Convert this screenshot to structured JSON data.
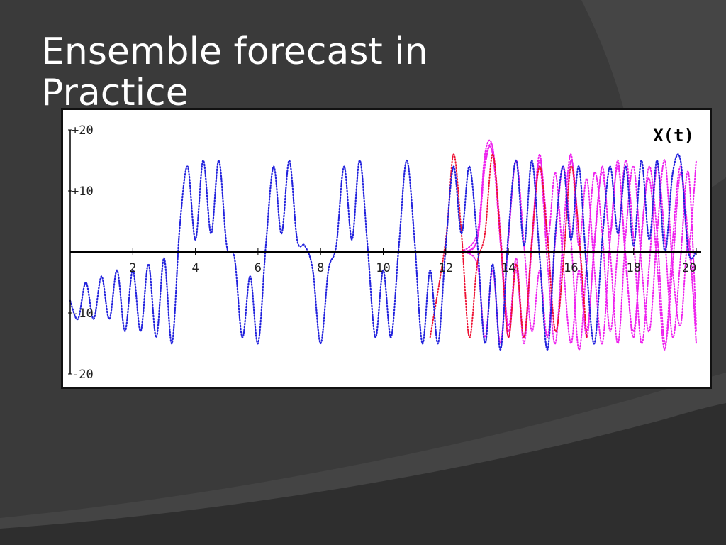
{
  "slide": {
    "title_line1": "Ensemble forecast in",
    "title_line2": "Practice"
  },
  "colors": {
    "background": "#3a3a3a",
    "title": "#ffffff",
    "control_run": "#2222dd",
    "ensemble_members": "#ee22ee",
    "perturbed_run": "#ee1133"
  },
  "chart_data": {
    "type": "line",
    "title": "X(t)",
    "xlabel": "",
    "ylabel": "",
    "xlim": [
      0,
      20
    ],
    "ylim": [
      -20,
      20
    ],
    "x_ticks": [
      2,
      4,
      6,
      8,
      10,
      12,
      14,
      16,
      18,
      20
    ],
    "x_tick_labels": [
      "2",
      "4",
      "6",
      "8",
      "10",
      "12",
      "14",
      "16",
      "18",
      "20"
    ],
    "y_ticks": [
      20,
      10,
      -10,
      -20
    ],
    "y_tick_labels": [
      "+20",
      "+10",
      "-10",
      "-20"
    ],
    "grid": false,
    "line_style": "dotted",
    "series": [
      {
        "role": "control",
        "color": "#2222dd",
        "x": [
          0.0,
          0.25,
          0.5,
          0.75,
          1.0,
          1.25,
          1.5,
          1.75,
          2.0,
          2.25,
          2.5,
          2.75,
          3.0,
          3.25,
          3.5,
          3.75,
          4.0,
          4.25,
          4.5,
          4.75,
          5.0,
          5.25,
          5.5,
          5.75,
          6.0,
          6.25,
          6.5,
          6.75,
          7.0,
          7.25,
          7.5,
          7.75,
          8.0,
          8.25,
          8.5,
          8.75,
          9.0,
          9.25,
          9.5,
          9.75,
          10.0,
          10.25,
          10.5,
          10.75,
          11.0,
          11.25,
          11.5,
          11.75,
          12.0,
          12.25,
          12.5,
          12.75,
          13.0,
          13.25,
          13.5,
          13.75,
          14.0,
          14.25,
          14.5,
          14.75,
          15.0,
          15.25,
          15.5,
          15.75,
          16.0,
          16.25,
          16.5,
          16.75,
          17.0,
          17.25,
          17.5,
          17.75,
          18.0,
          18.25,
          18.5,
          18.75,
          19.0,
          19.25,
          19.5,
          19.75,
          20.0
        ],
        "values": [
          -8,
          -11,
          -5,
          -11,
          -4,
          -11,
          -3,
          -13,
          -3,
          -13,
          -2,
          -14,
          -1,
          -15,
          4,
          14,
          2,
          15,
          3,
          15,
          1,
          -1,
          -14,
          -4,
          -15,
          1,
          14,
          3,
          15,
          2,
          1,
          -3,
          -15,
          -3,
          1,
          14,
          2,
          15,
          1,
          -14,
          -3,
          -14,
          1,
          15,
          2,
          -15,
          -3,
          -15,
          1,
          14,
          3,
          14,
          2,
          -15,
          -2,
          -16,
          3,
          15,
          1,
          15,
          -1,
          -16,
          3,
          14,
          2,
          14,
          -3,
          -15,
          2,
          14,
          3,
          14,
          1,
          15,
          2,
          15,
          0,
          13,
          15,
          0,
          0
        ]
      },
      {
        "role": "ensemble-member",
        "color": "#ee22ee",
        "x": [
          12.5,
          13.0,
          13.25,
          13.5,
          13.75,
          14.0,
          14.25,
          14.5,
          14.75,
          15.0,
          15.25,
          15.5,
          15.75,
          16.0,
          16.25,
          16.5,
          16.75,
          17.0,
          17.25,
          17.5,
          17.75,
          18.0,
          18.25,
          18.5,
          18.75,
          19.0,
          19.25,
          19.5,
          19.75,
          20.0
        ],
        "values": [
          0,
          2,
          14,
          17,
          2,
          -12,
          -3,
          -14,
          2,
          15,
          3,
          -13,
          -2,
          15,
          3,
          -14,
          2,
          13,
          0,
          -15,
          3,
          14,
          -2,
          -13,
          3,
          15,
          -3,
          -12,
          2,
          -15
        ]
      },
      {
        "role": "ensemble-member",
        "color": "#ee22ee",
        "x": [
          12.5,
          13.0,
          13.25,
          13.5,
          13.75,
          14.0,
          14.25,
          14.5,
          14.75,
          15.0,
          15.25,
          15.5,
          15.75,
          16.0,
          16.25,
          16.5,
          16.75,
          17.0,
          17.25,
          17.5,
          17.75,
          18.0,
          18.25,
          18.5,
          18.75,
          19.0,
          19.25,
          19.5,
          19.75,
          20.0
        ],
        "values": [
          0,
          3,
          15,
          16,
          1,
          -14,
          -2,
          -15,
          1,
          14,
          -2,
          -15,
          3,
          16,
          1,
          12,
          -3,
          -15,
          2,
          14,
          -1,
          -14,
          3,
          12,
          -2,
          -16,
          2,
          14,
          1,
          15
        ]
      },
      {
        "role": "ensemble-member",
        "color": "#ee22ee",
        "x": [
          12.5,
          13.0,
          13.25,
          13.5,
          13.75,
          14.0,
          14.25,
          14.5,
          14.75,
          15.0,
          15.25,
          15.5,
          15.75,
          16.0,
          16.25,
          16.5,
          16.75,
          17.0,
          17.25,
          17.5,
          17.75,
          18.0,
          18.25,
          18.5,
          18.75,
          19.0,
          19.25,
          19.5,
          19.75,
          20.0
        ],
        "values": [
          0,
          -2,
          -14,
          -3,
          -15,
          2,
          15,
          1,
          -13,
          -3,
          -14,
          2,
          14,
          2,
          -16,
          -2,
          13,
          3,
          -13,
          1,
          15,
          2,
          -15,
          -2,
          14,
          2,
          -14,
          -1,
          13,
          -12
        ]
      },
      {
        "role": "ensemble-member",
        "color": "#ee22ee",
        "x": [
          12.5,
          13.0,
          13.25,
          13.5,
          13.75,
          14.0,
          14.25,
          14.5,
          14.75,
          15.0,
          15.25,
          15.5,
          15.75,
          16.0,
          16.25,
          16.5,
          16.75,
          17.0,
          17.25,
          17.5,
          17.75,
          18.0,
          18.25,
          18.5,
          18.75,
          19.0,
          19.25,
          19.5,
          19.75,
          20.0
        ],
        "values": [
          0,
          2,
          16,
          17,
          3,
          -13,
          -1,
          -14,
          2,
          16,
          2,
          13,
          -2,
          -15,
          -3,
          -13,
          1,
          14,
          3,
          15,
          -2,
          -13,
          2,
          14,
          3,
          -15,
          -2,
          13,
          2,
          -13
        ]
      },
      {
        "role": "perturbed",
        "color": "#ee1133",
        "x": [
          11.5,
          12.0,
          12.25,
          12.5,
          12.75,
          13.0,
          13.25,
          13.5,
          13.75,
          14.0,
          14.25,
          14.5,
          14.75,
          15.0,
          15.25,
          15.5,
          15.75,
          16.0,
          16.25,
          16.5
        ],
        "values": [
          -14,
          2,
          16,
          3,
          -14,
          -2,
          3,
          16,
          2,
          -14,
          -2,
          -14,
          2,
          14,
          2,
          -13,
          -2,
          14,
          3,
          -14
        ]
      }
    ]
  }
}
